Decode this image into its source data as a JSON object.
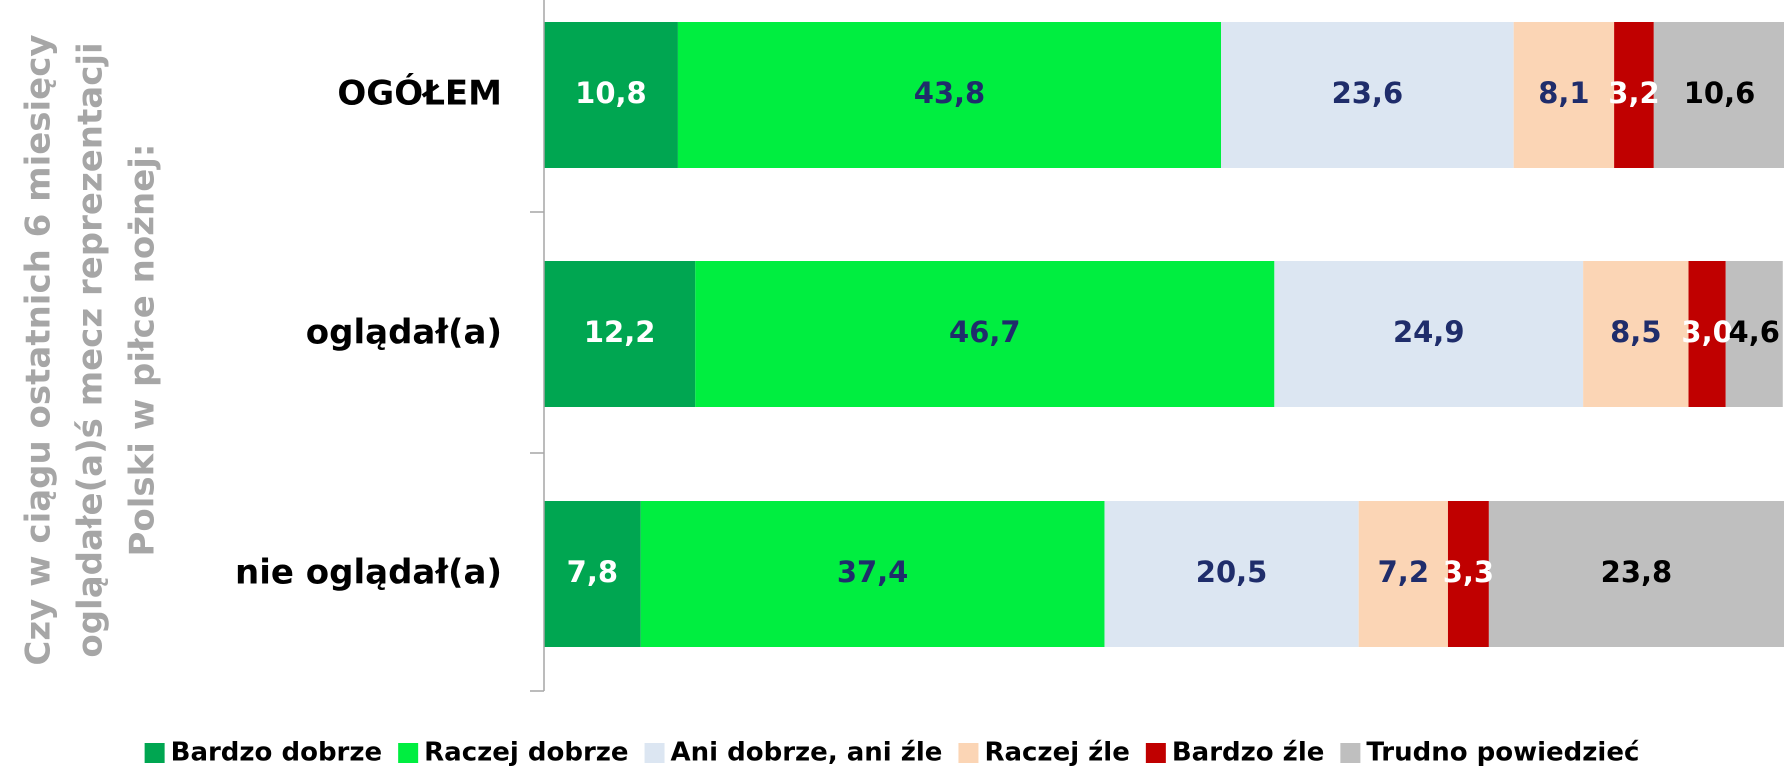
{
  "chart_data": {
    "type": "stacked_barh",
    "ylabel": [
      "Czy w ciągu ostatnich 6 miesięcy",
      "oglądałe(a)ś mecz reprezentacji",
      "Polski w piłce nożnej:"
    ],
    "categories": [
      "OGÓŁEM",
      "oglądał(a)",
      "nie oglądał(a)"
    ],
    "xlim": [
      0,
      100
    ],
    "legend": "bottom",
    "series": [
      {
        "name": "Bardzo dobrze",
        "color": "#00a651",
        "label_color": "#ffffff",
        "values": [
          10.8,
          12.2,
          7.8
        ],
        "value_labels": [
          "10,8",
          "12,2",
          "7,8"
        ]
      },
      {
        "name": "Raczej dobrze",
        "color": "#00ee40",
        "label_color": "#1f2d6b",
        "values": [
          43.8,
          46.7,
          37.4
        ],
        "value_labels": [
          "43,8",
          "46,7",
          "37,4"
        ]
      },
      {
        "name": "Ani dobrze, ani źle",
        "color": "#dce6f2",
        "label_color": "#1f2d6b",
        "values": [
          23.6,
          24.9,
          20.5
        ],
        "value_labels": [
          "23,6",
          "24,9",
          "20,5"
        ]
      },
      {
        "name": "Raczej źle",
        "color": "#fbd5b5",
        "label_color": "#1f2d6b",
        "values": [
          8.1,
          8.5,
          7.2
        ],
        "value_labels": [
          "8,1",
          "8,5",
          "7,2"
        ]
      },
      {
        "name": "Bardzo źle",
        "color": "#c00000",
        "label_color": "#ffffff",
        "values": [
          3.2,
          3.0,
          3.3
        ],
        "value_labels": [
          "3,2",
          "3,0",
          "3,3"
        ]
      },
      {
        "name": "Trudno powiedzieć",
        "color": "#bfbfbf",
        "label_color": "#000000",
        "values": [
          10.6,
          4.6,
          23.8
        ],
        "value_labels": [
          "10,6",
          "4,6",
          "23,8"
        ]
      }
    ]
  }
}
